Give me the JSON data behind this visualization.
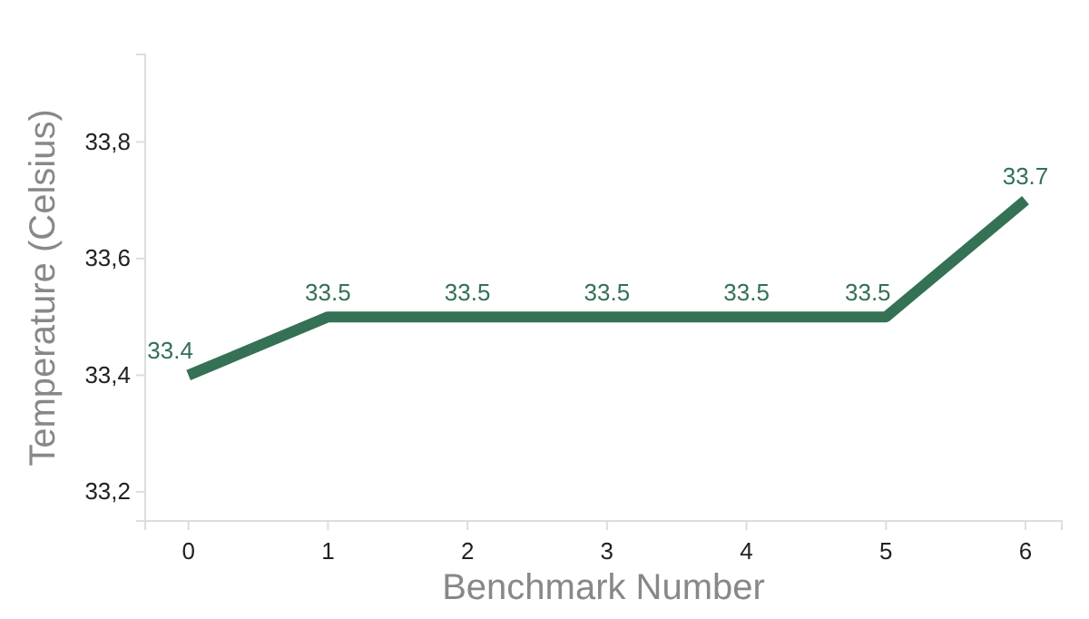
{
  "chart_data": {
    "type": "line",
    "xlabel": "Benchmark Number",
    "ylabel": "Temperature (Celsius)",
    "x": [
      0,
      1,
      2,
      3,
      4,
      5,
      6
    ],
    "series": [
      {
        "color": "#347155",
        "values": [
          33.4,
          33.5,
          33.5,
          33.5,
          33.5,
          33.5,
          33.7
        ]
      }
    ],
    "xlim": [
      -0.31,
      6.26
    ],
    "xticks": [
      0,
      1,
      2,
      3,
      4,
      5,
      6
    ],
    "ylim": [
      33.15,
      33.95
    ],
    "yticks": [
      {
        "value": 33.2,
        "label": "33,2"
      },
      {
        "value": 33.4,
        "label": "33,4"
      },
      {
        "value": 33.6,
        "label": "33,6"
      },
      {
        "value": 33.8,
        "label": "33,8"
      }
    ],
    "data_labels": true,
    "grid": false,
    "marker": "none",
    "line_style": "solid"
  }
}
